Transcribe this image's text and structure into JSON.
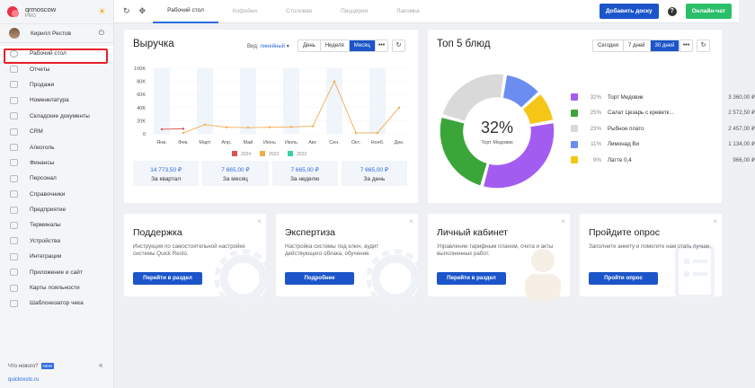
{
  "account": {
    "name": "qrmoscow",
    "plan": "PRO"
  },
  "user": {
    "name": "Кирилл Рестов"
  },
  "sidebar": {
    "items": [
      {
        "label": "Рабочий стол"
      },
      {
        "label": "Отчеты"
      },
      {
        "label": "Продажи"
      },
      {
        "label": "Номенклатура"
      },
      {
        "label": "Складские документы"
      },
      {
        "label": "CRM"
      },
      {
        "label": "Алкоголь"
      },
      {
        "label": "Финансы"
      },
      {
        "label": "Персонал"
      },
      {
        "label": "Справочники"
      },
      {
        "label": "Предприятие"
      },
      {
        "label": "Терминалы"
      },
      {
        "label": "Устройства"
      },
      {
        "label": "Интеграции"
      },
      {
        "label": "Приложение и сайт"
      },
      {
        "label": "Карты лояльности"
      },
      {
        "label": "Шаблонизатор чека"
      }
    ],
    "whats_new": "Что нового?",
    "new_badge": "NEW",
    "site": "quickresto.ru"
  },
  "topbar": {
    "tabs": [
      {
        "label": "Рабочий стол"
      },
      {
        "label": "Кофейня"
      },
      {
        "label": "Столовая"
      },
      {
        "label": "Пиццерия"
      },
      {
        "label": "Лакомка"
      }
    ],
    "add_board": "Добавить доску",
    "help": "?",
    "chat": "Онлайн-чат"
  },
  "revenue": {
    "title": "Выручка",
    "view_label": "Вид:",
    "view_value": "линейный",
    "periods": [
      "День",
      "Неделя",
      "Месяц"
    ],
    "stats": [
      {
        "value": "14 773,50 ₽",
        "label": "За квартал"
      },
      {
        "value": "7 665,00 ₽",
        "label": "За месяц"
      },
      {
        "value": "7 665,00 ₽",
        "label": "За неделю"
      },
      {
        "value": "7 665,00 ₽",
        "label": "За день"
      }
    ]
  },
  "chart_data": {
    "type": "line",
    "categories": [
      "Янв.",
      "Фев.",
      "Март",
      "Апр.",
      "Май",
      "Июнь",
      "Июль",
      "Авг.",
      "Сен.",
      "Окт.",
      "Нояб.",
      "Дек."
    ],
    "y_ticks": [
      "0",
      "20K",
      "40K",
      "60K",
      "80K",
      "100K"
    ],
    "ylim": [
      0,
      100000
    ],
    "series": [
      {
        "name": "2024",
        "color": "#d9534f",
        "values": [
          7000,
          7700,
          null,
          null,
          null,
          null,
          null,
          null,
          null,
          null,
          null,
          null
        ]
      },
      {
        "name": "2023",
        "color": "#f0ad4e",
        "values": [
          null,
          1500,
          14000,
          10000,
          9500,
          10000,
          10500,
          11500,
          80000,
          1500,
          1500,
          40000
        ]
      },
      {
        "name": "2022",
        "color": "#3ccfa8",
        "values": [
          null,
          null,
          null,
          null,
          null,
          null,
          null,
          null,
          null,
          null,
          null,
          null
        ]
      }
    ]
  },
  "top5": {
    "title": "Топ 5 блюд",
    "periods": [
      "Сегодня",
      "7 дней",
      "30 дней"
    ],
    "center_pct": "32%",
    "center_label": "Торт Медовик",
    "items": [
      {
        "pct": "32%",
        "name": "Торт Медовик",
        "amount": "3 360,00 ₽",
        "color": "#a35cf0",
        "share": 32
      },
      {
        "pct": "25%",
        "name": "Салат Цезарь с креветк...",
        "amount": "2 572,50 ₽",
        "color": "#3aa63a",
        "share": 25
      },
      {
        "pct": "23%",
        "name": "Рыбное плато",
        "amount": "2 457,00 ₽",
        "color": "#d9d9d9",
        "share": 23
      },
      {
        "pct": "11%",
        "name": "Лимонад Ви",
        "amount": "1 134,00 ₽",
        "color": "#6b8df0",
        "share": 11
      },
      {
        "pct": "9%",
        "name": "Латте 0,4",
        "amount": "966,00 ₽",
        "color": "#f5c518",
        "share": 9
      }
    ]
  },
  "promos": [
    {
      "title": "Поддержка",
      "text": "Инструкция по самостоятельной настройке системы Quick Resto.",
      "button": "Перейти в раздел"
    },
    {
      "title": "Экспертиза",
      "text": "Настройка системы под ключ, аудит действующего облака, обучение.",
      "button": "Подробнее"
    },
    {
      "title": "Личный кабинет",
      "text": "Управление тарифным планом, счета и акты выполненных работ.",
      "button": "Перейти в раздел"
    },
    {
      "title": "Пройдите опрос",
      "text": "Заполните анкету и помогите нам стать лучше.",
      "button": "Пройти опрос"
    }
  ]
}
